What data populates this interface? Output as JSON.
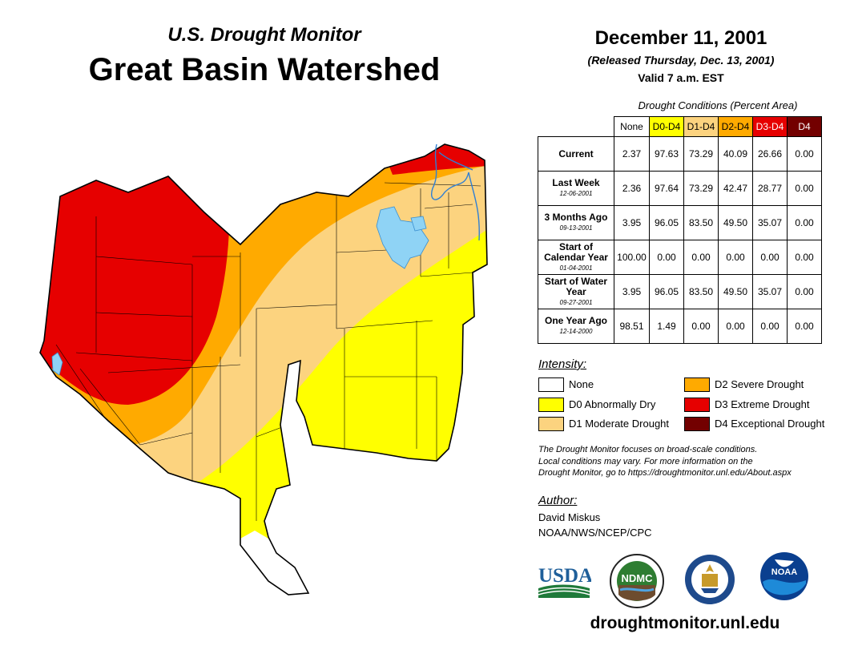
{
  "header": {
    "subtitle": "U.S. Drought Monitor",
    "title": "Great Basin Watershed",
    "date": "December 11, 2001",
    "released": "(Released Thursday, Dec. 13, 2001)",
    "valid": "Valid 7 a.m. EST"
  },
  "table": {
    "caption": "Drought Conditions (Percent Area)",
    "columns": [
      "None",
      "D0-D4",
      "D1-D4",
      "D2-D4",
      "D3-D4",
      "D4"
    ],
    "rows": [
      {
        "label": "Current",
        "date": "",
        "values": [
          "2.37",
          "97.63",
          "73.29",
          "40.09",
          "26.66",
          "0.00"
        ]
      },
      {
        "label": "Last Week",
        "date": "12-06-2001",
        "values": [
          "2.36",
          "97.64",
          "73.29",
          "42.47",
          "28.77",
          "0.00"
        ]
      },
      {
        "label": "3 Months Ago",
        "date": "09-13-2001",
        "values": [
          "3.95",
          "96.05",
          "83.50",
          "49.50",
          "35.07",
          "0.00"
        ]
      },
      {
        "label": "Start of Calendar Year",
        "date": "01-04-2001",
        "values": [
          "100.00",
          "0.00",
          "0.00",
          "0.00",
          "0.00",
          "0.00"
        ]
      },
      {
        "label": "Start of Water Year",
        "date": "09-27-2001",
        "values": [
          "3.95",
          "96.05",
          "83.50",
          "49.50",
          "35.07",
          "0.00"
        ]
      },
      {
        "label": "One Year Ago",
        "date": "12-14-2000",
        "values": [
          "98.51",
          "1.49",
          "0.00",
          "0.00",
          "0.00",
          "0.00"
        ]
      }
    ]
  },
  "legend": {
    "title": "Intensity:",
    "items": [
      {
        "label": "None",
        "color": "#ffffff"
      },
      {
        "label": "D0 Abnormally Dry",
        "color": "#ffff00"
      },
      {
        "label": "D1 Moderate Drought",
        "color": "#fcd37f"
      },
      {
        "label": "D2 Severe Drought",
        "color": "#ffaa00"
      },
      {
        "label": "D3 Extreme Drought",
        "color": "#e60000"
      },
      {
        "label": "D4 Exceptional Drought",
        "color": "#730000"
      }
    ]
  },
  "note": {
    "line1": "The Drought Monitor focuses on broad-scale conditions.",
    "line2": "Local conditions may vary. For more information on the",
    "line3": "Drought Monitor, go to https://droughtmonitor.unl.edu/About.aspx"
  },
  "author": {
    "title": "Author:",
    "name": "David Miskus",
    "org": "NOAA/NWS/NCEP/CPC"
  },
  "logos": {
    "usda": "USDA",
    "ndmc": "NDMC",
    "noaa": "NOAA"
  },
  "website": "droughtmonitor.unl.edu",
  "colors": {
    "none": "#ffffff",
    "d0": "#ffff00",
    "d1": "#fcd37f",
    "d2": "#ffaa00",
    "d3": "#e60000",
    "d4": "#730000",
    "water": "#8fd3f5"
  }
}
